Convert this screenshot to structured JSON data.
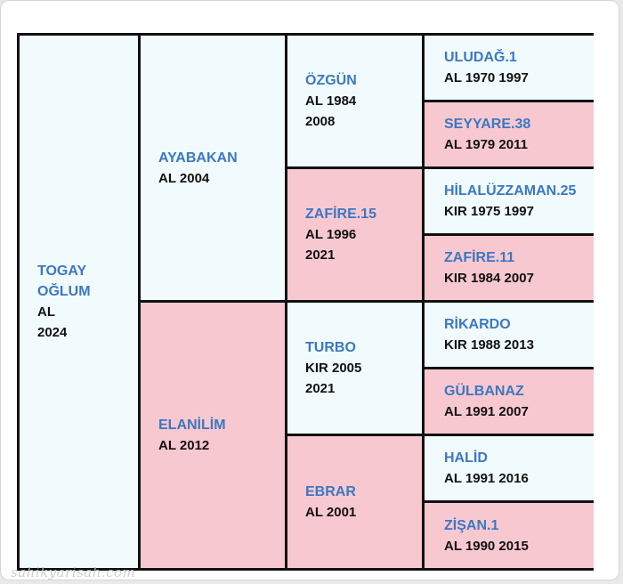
{
  "pedigree": {
    "subject": {
      "name": "TOGAY\nOĞLUM",
      "info": "AL\n2024"
    },
    "sire": {
      "name": "AYABAKAN",
      "info": "AL 2004"
    },
    "dam": {
      "name": "ELANİLİM",
      "info": "AL 2012"
    },
    "sire_sire": {
      "name": "ÖZGÜN",
      "info": "AL 1984\n2008"
    },
    "sire_dam": {
      "name": "ZAFİRE.15",
      "info": "AL 1996\n2021"
    },
    "dam_sire": {
      "name": "TURBO",
      "info": "KIR 2005\n2021"
    },
    "dam_dam": {
      "name": "EBRAR",
      "info": "AL 2001"
    },
    "ss_sire": {
      "name": "ULUDAĞ.1",
      "info": "AL 1970 1997"
    },
    "ss_dam": {
      "name": "SEYYARE.38",
      "info": "AL 1979 2011"
    },
    "sd_sire": {
      "name": "HİLALÜZZAMAN.25",
      "info": "KIR 1975 1997"
    },
    "sd_dam": {
      "name": "ZAFİRE.11",
      "info": "KIR 1984 2007"
    },
    "ds_sire": {
      "name": "RİKARDO",
      "info": "KIR 1988 2013"
    },
    "ds_dam": {
      "name": "GÜLBANAZ",
      "info": "AL 1991 2007"
    },
    "dd_sire": {
      "name": "HALİD",
      "info": "AL 1991 2016"
    },
    "dd_dam": {
      "name": "ZİŞAN.1",
      "info": "AL 1990 2015"
    }
  },
  "colors": {
    "male_background": "#f1fbfd",
    "female_background": "#f8c8d1",
    "name_text": "#3b78c1",
    "info_text": "#111111",
    "border": "#111111"
  },
  "watermark": "sahikyarisah.com"
}
